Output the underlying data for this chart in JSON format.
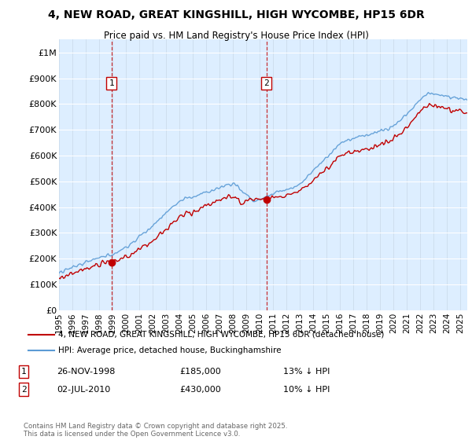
{
  "title_line1": "4, NEW ROAD, GREAT KINGSHILL, HIGH WYCOMBE, HP15 6DR",
  "title_line2": "Price paid vs. HM Land Registry's House Price Index (HPI)",
  "ylim": [
    0,
    1050000
  ],
  "yticks": [
    0,
    100000,
    200000,
    300000,
    400000,
    500000,
    600000,
    700000,
    800000,
    900000,
    1000000
  ],
  "ytick_labels": [
    "£0",
    "£100K",
    "£200K",
    "£300K",
    "£400K",
    "£500K",
    "£600K",
    "£700K",
    "£800K",
    "£900K",
    "£1M"
  ],
  "hpi_color": "#5b9bd5",
  "price_color": "#c00000",
  "background_color": "#ddeeff",
  "sale1_date": 1998.92,
  "sale1_price": 185000,
  "sale2_date": 2010.5,
  "sale2_price": 430000,
  "legend_line1": "4, NEW ROAD, GREAT KINGSHILL, HIGH WYCOMBE, HP15 6DR (detached house)",
  "legend_line2": "HPI: Average price, detached house, Buckinghamshire",
  "footer": "Contains HM Land Registry data © Crown copyright and database right 2025.\nThis data is licensed under the Open Government Licence v3.0.",
  "xmin": 1995,
  "xmax": 2025.5
}
